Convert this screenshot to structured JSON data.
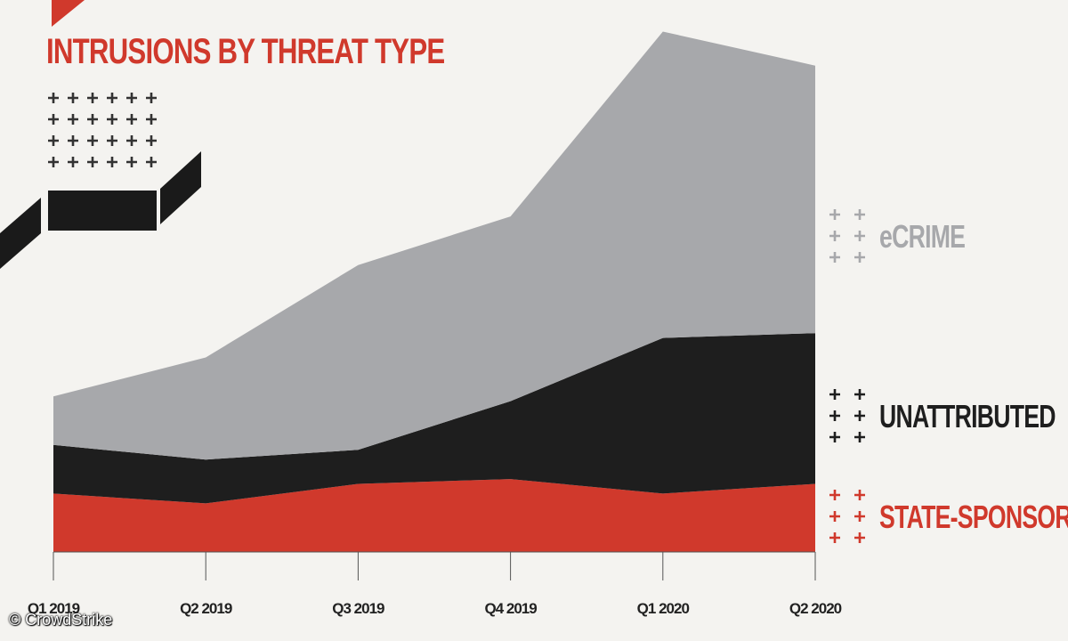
{
  "page": {
    "title": "INTRUSIONS BY THREAT TYPE",
    "credit": "© CrowdStrike"
  },
  "colors": {
    "state_sponsored": "#d0392c",
    "unattributed": "#1e1e1e",
    "ecrime": "#a7a8ab",
    "title": "#d0392c",
    "axis": "#555555"
  },
  "chart_data": {
    "type": "area",
    "stacked": true,
    "title": "INTRUSIONS BY THREAT TYPE",
    "categories": [
      "Q1 2019",
      "Q2 2019",
      "Q3 2019",
      "Q4 2019",
      "Q1 2020",
      "Q2 2020"
    ],
    "series": [
      {
        "name": "STATE-SPONSORED",
        "color": "#d0392c",
        "values": [
          12,
          10,
          14,
          15,
          12,
          14
        ]
      },
      {
        "name": "UNATTRIBUTED",
        "color": "#1e1e1e",
        "values": [
          10,
          9,
          7,
          16,
          32,
          31
        ]
      },
      {
        "name": "eCRIME",
        "color": "#a7a8ab",
        "values": [
          10,
          21,
          38,
          38,
          63,
          55
        ]
      }
    ],
    "ylim": [
      0,
      108
    ],
    "legend_placement": "right",
    "xlabel": "",
    "ylabel": ""
  }
}
